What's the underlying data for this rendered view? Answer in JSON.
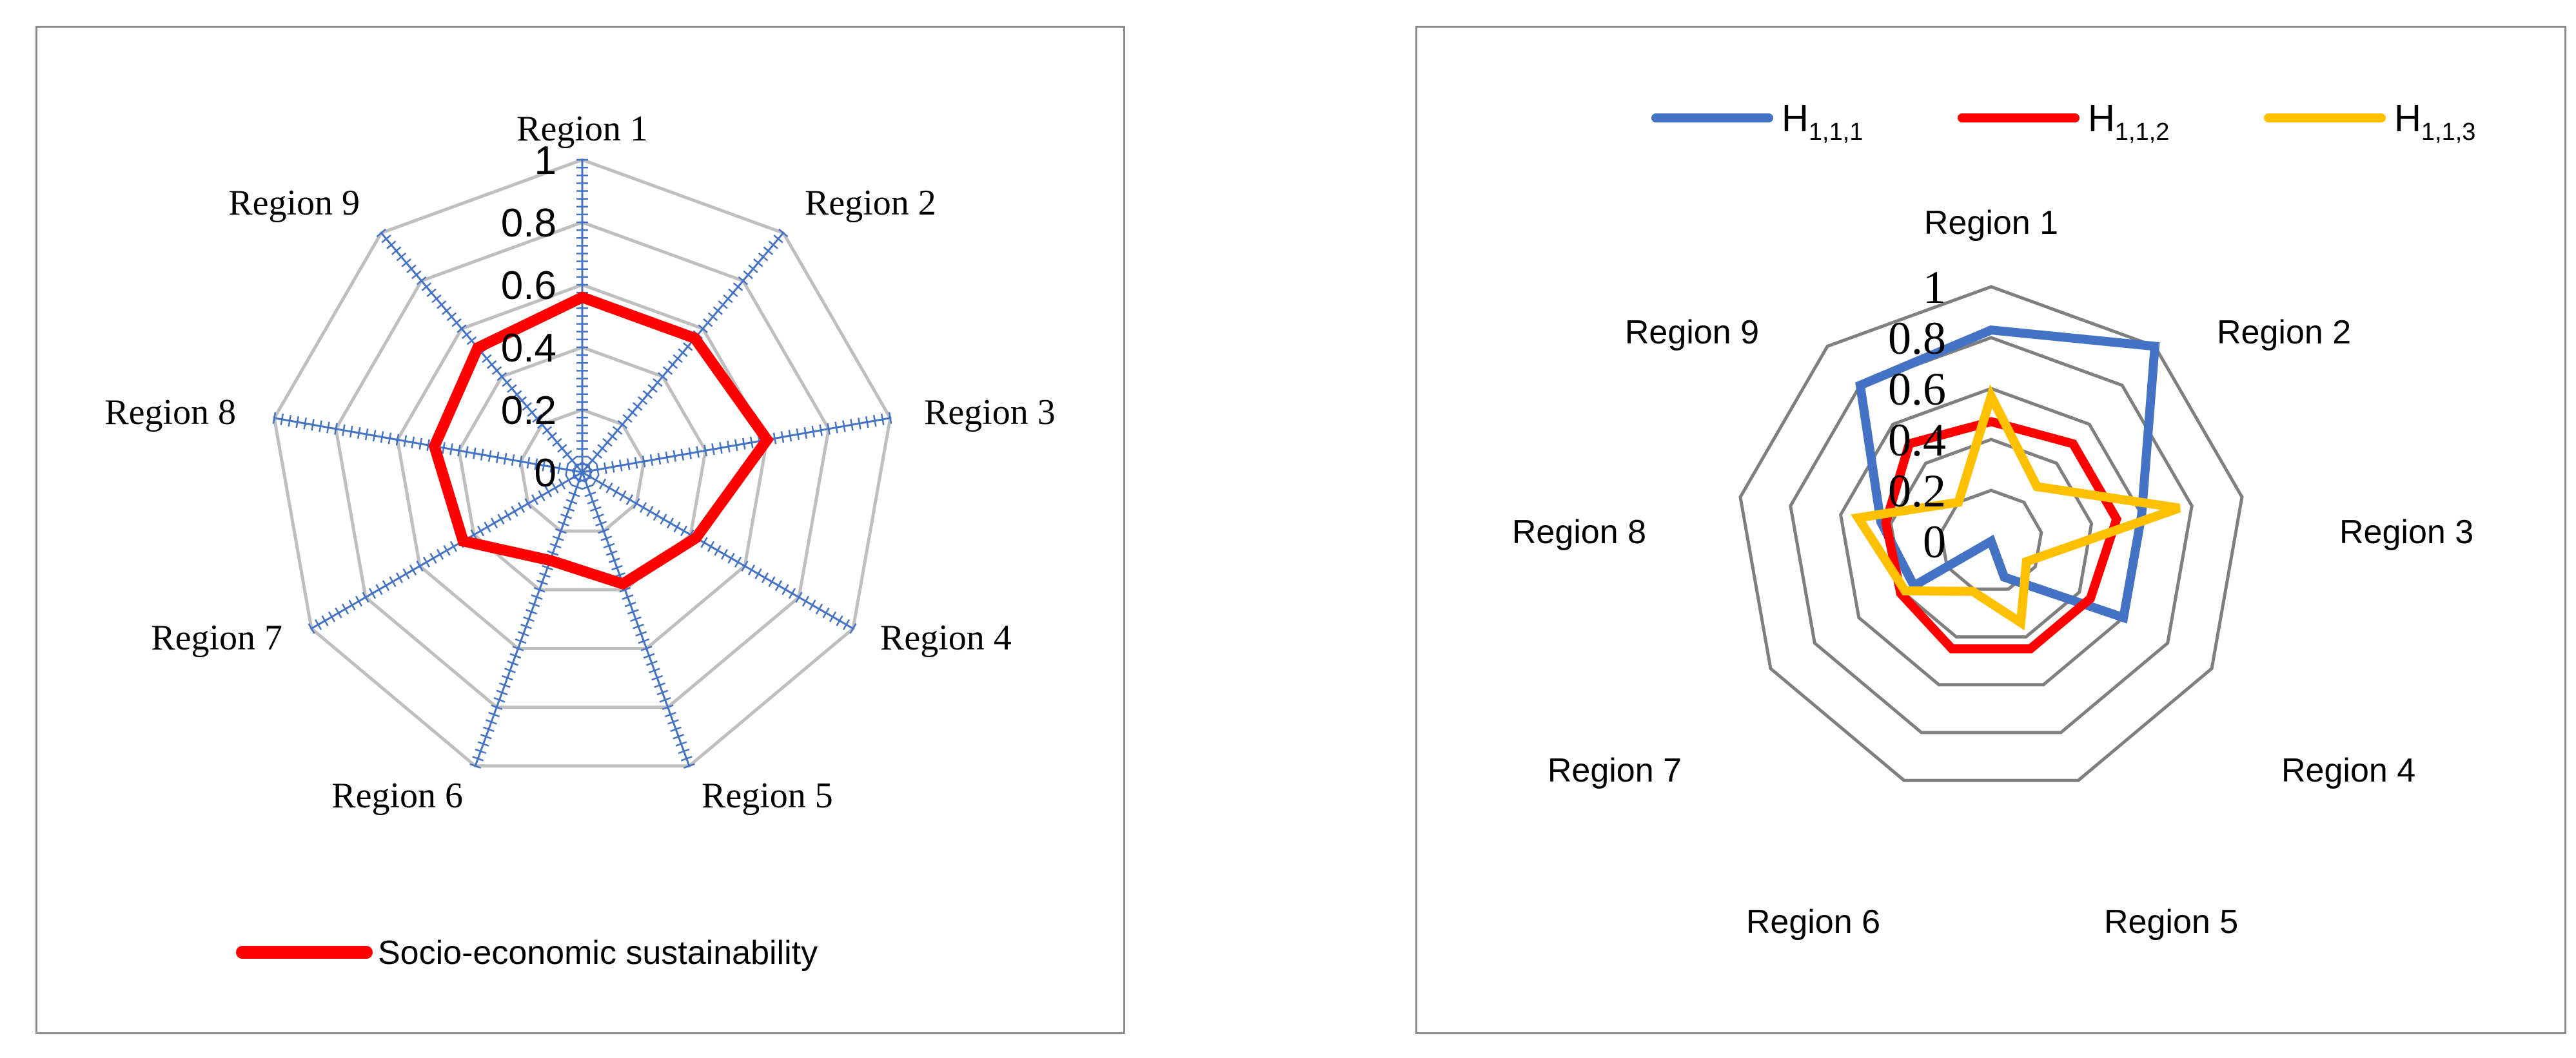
{
  "chart_data": [
    {
      "type": "radar",
      "title": "",
      "categories": [
        "Region 1",
        "Region 2",
        "Region 3",
        "Region 4",
        "Region 5",
        "Region 6",
        "Region 7",
        "Region 8",
        "Region 9"
      ],
      "rlim": [
        0,
        1
      ],
      "ticks": [
        "0",
        "0.2",
        "0.4",
        "0.6",
        "0.8",
        "1"
      ],
      "tick_values": [
        0,
        0.2,
        0.4,
        0.6,
        0.8,
        1
      ],
      "grid": true,
      "legend_position": "bottom",
      "series": [
        {
          "name": "Socio-economic sustainability",
          "color": "#ff0000",
          "values": [
            0.56,
            0.56,
            0.6,
            0.42,
            0.38,
            0.3,
            0.44,
            0.48,
            0.52
          ]
        }
      ]
    },
    {
      "type": "radar",
      "title": "",
      "categories": [
        "Region 1",
        "Region 2",
        "Region 3",
        "Region 4",
        "Region 5",
        "Region 6",
        "Region 7",
        "Region 8",
        "Region 9"
      ],
      "rlim": [
        0,
        1
      ],
      "ticks": [
        "0",
        "0.2",
        "0.4",
        "0.6",
        "0.8",
        "1"
      ],
      "tick_values": [
        0,
        0.2,
        0.4,
        0.6,
        0.8,
        1
      ],
      "grid": true,
      "legend_position": "top",
      "series": [
        {
          "name": "H1,1,1",
          "label_main": "H",
          "label_sub": "1,1,1",
          "color": "#4472c4",
          "values": [
            0.83,
            1.0,
            0.6,
            0.6,
            0.15,
            0.0,
            0.35,
            0.44,
            0.8
          ]
        },
        {
          "name": "H1,1,2",
          "label_main": "H",
          "label_sub": "1,1,2",
          "color": "#ff0000",
          "values": [
            0.47,
            0.5,
            0.5,
            0.45,
            0.45,
            0.45,
            0.41,
            0.42,
            0.5
          ]
        },
        {
          "name": "H1,1,3",
          "label_main": "H",
          "label_sub": "1,1,3",
          "color": "#ffc000",
          "values": [
            0.57,
            0.28,
            0.75,
            0.16,
            0.34,
            0.21,
            0.39,
            0.53,
            0.2
          ]
        }
      ]
    }
  ]
}
